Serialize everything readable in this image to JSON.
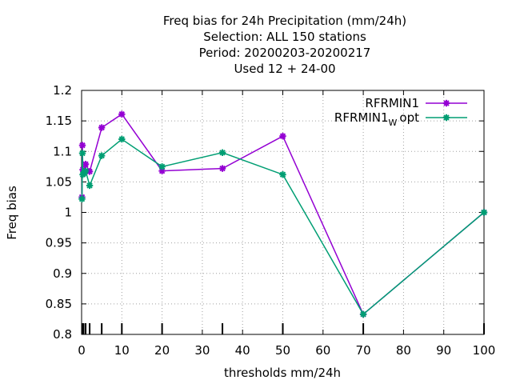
{
  "chart_data": {
    "type": "line",
    "title_lines": [
      "Freq bias  for 24h Precipitation (mm/24h)",
      "Selection: ALL    150 stations",
      "Period: 20200203-20200217",
      "Used  12 + 24-00"
    ],
    "xlabel": "thresholds mm/24h",
    "ylabel": "Freq bias",
    "xlim": [
      0,
      100
    ],
    "ylim": [
      0.8,
      1.2
    ],
    "xticks": [
      0,
      10,
      20,
      30,
      40,
      50,
      60,
      70,
      80,
      90,
      100
    ],
    "yticks": [
      0.8,
      0.85,
      0.9,
      0.95,
      1,
      1.05,
      1.1,
      1.15,
      1.2
    ],
    "ytick_labels": [
      "0.8",
      "0.85",
      "0.9",
      "0.95",
      "1",
      "1.05",
      "1.1",
      "1.15",
      "1.2"
    ],
    "grid": true,
    "legend_position": "top-right",
    "threshold_marks": [
      0.1,
      0.2,
      0.3,
      0.5,
      1,
      2,
      5,
      10,
      20,
      35,
      50,
      70,
      100
    ],
    "series": [
      {
        "name": "RFRMIN1",
        "color": "#9400d3",
        "x": [
          0.1,
          0.2,
          0.3,
          0.5,
          1,
          2,
          5,
          10,
          20,
          35,
          50,
          70,
          100
        ],
        "y": [
          1.025,
          1.11,
          1.07,
          1.068,
          1.079,
          1.067,
          1.139,
          1.161,
          1.068,
          1.072,
          1.125,
          0.833,
          1.0
        ]
      },
      {
        "name_main": "RFRMIN1",
        "name_sub": "W",
        "name_suffix": "opt",
        "color": "#009e73",
        "x": [
          0.1,
          0.2,
          0.3,
          0.5,
          1,
          2,
          5,
          10,
          20,
          35,
          50,
          70,
          100
        ],
        "y": [
          1.022,
          1.097,
          1.062,
          1.064,
          1.068,
          1.044,
          1.093,
          1.12,
          1.075,
          1.098,
          1.062,
          0.833,
          1.0
        ]
      }
    ]
  }
}
